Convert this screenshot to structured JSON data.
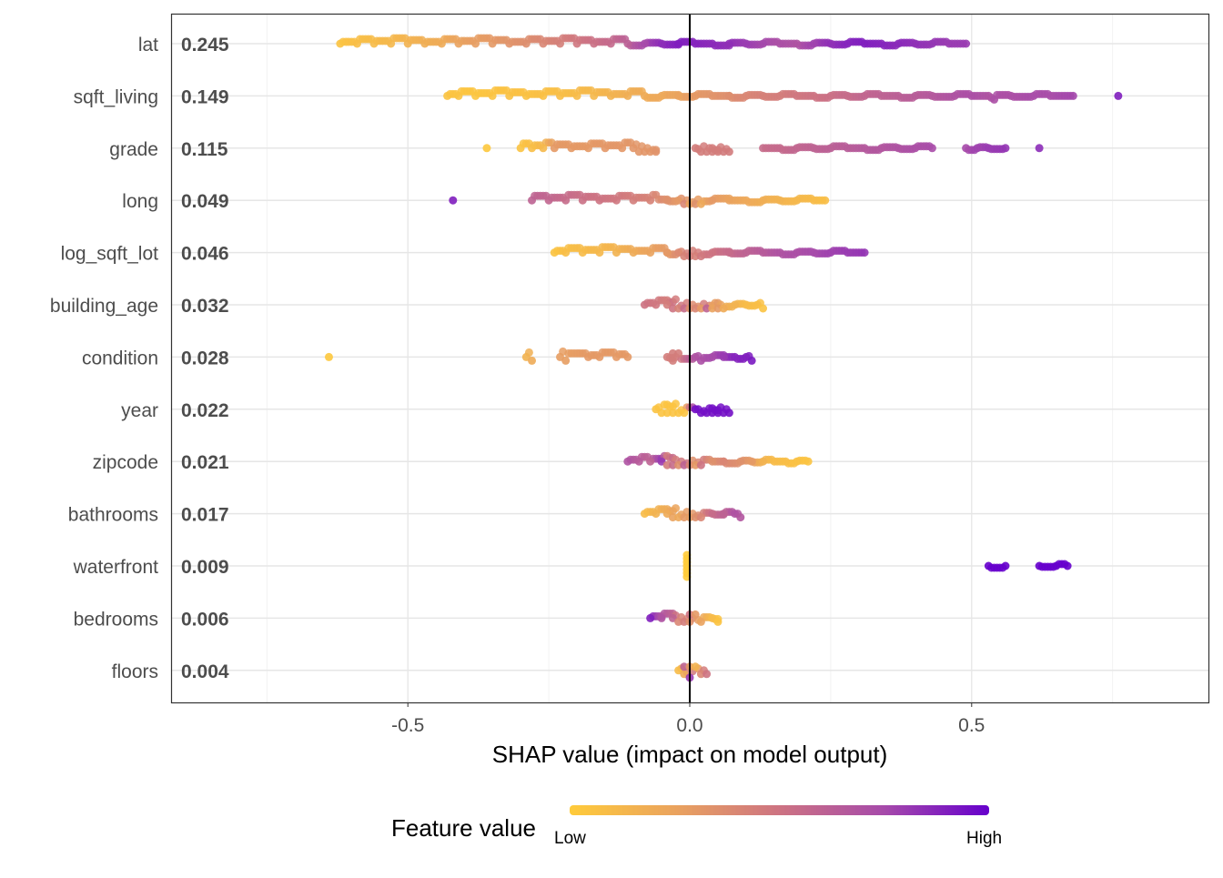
{
  "chart_data": {
    "type": "scatter",
    "subtype": "shap-beeswarm",
    "xlabel": "SHAP value (impact on model output)",
    "xlim": [
      -0.92,
      0.92
    ],
    "xticks": [
      -0.5,
      0.0,
      0.5
    ],
    "xtick_labels": [
      "-0.5",
      "0.0",
      "0.5"
    ],
    "grid": true,
    "legend": {
      "title": "Feature value",
      "low_label": "Low",
      "high_label": "High",
      "placement": "bottom",
      "colors": [
        "#ffcb3a",
        "#eaa35e",
        "#cd7382",
        "#a64aaa",
        "#6600cc"
      ]
    },
    "features": [
      {
        "name": "lat",
        "importance": "0.245",
        "points": [
          [
            -0.62,
            0.05
          ],
          [
            -0.59,
            0.08
          ],
          [
            -0.56,
            0.1
          ],
          [
            -0.53,
            0.12
          ],
          [
            -0.5,
            0.15
          ],
          [
            -0.47,
            0.18
          ],
          [
            -0.44,
            0.2
          ],
          [
            -0.41,
            0.25
          ],
          [
            -0.38,
            0.28
          ],
          [
            -0.35,
            0.3
          ],
          [
            -0.32,
            0.33
          ],
          [
            -0.29,
            0.36
          ],
          [
            -0.26,
            0.4
          ],
          [
            -0.23,
            0.44
          ],
          [
            -0.2,
            0.48
          ],
          [
            -0.17,
            0.52
          ],
          [
            -0.14,
            0.56
          ],
          [
            -0.11,
            0.62
          ],
          [
            -0.08,
            0.75
          ],
          [
            -0.05,
            0.85
          ],
          [
            -0.02,
            0.9
          ],
          [
            0.01,
            0.88
          ],
          [
            0.04,
            0.86
          ],
          [
            0.07,
            0.84
          ],
          [
            0.1,
            0.8
          ],
          [
            0.13,
            0.76
          ],
          [
            0.16,
            0.72
          ],
          [
            0.19,
            0.7
          ],
          [
            0.22,
            0.78
          ],
          [
            0.25,
            0.84
          ],
          [
            0.28,
            0.88
          ],
          [
            0.31,
            0.9
          ],
          [
            0.34,
            0.88
          ],
          [
            0.37,
            0.86
          ],
          [
            0.4,
            0.84
          ],
          [
            0.43,
            0.82
          ],
          [
            0.46,
            0.8
          ],
          [
            0.49,
            0.8
          ]
        ]
      },
      {
        "name": "sqft_living",
        "importance": "0.149",
        "points": [
          [
            -0.43,
            0.05
          ],
          [
            -0.41,
            0.05
          ],
          [
            -0.38,
            0.04
          ],
          [
            -0.35,
            0.05
          ],
          [
            -0.32,
            0.06
          ],
          [
            -0.29,
            0.06
          ],
          [
            -0.26,
            0.07
          ],
          [
            -0.23,
            0.08
          ],
          [
            -0.2,
            0.1
          ],
          [
            -0.17,
            0.12
          ],
          [
            -0.14,
            0.15
          ],
          [
            -0.11,
            0.18
          ],
          [
            -0.08,
            0.2
          ],
          [
            -0.05,
            0.22
          ],
          [
            -0.02,
            0.25
          ],
          [
            0.01,
            0.3
          ],
          [
            0.04,
            0.33
          ],
          [
            0.07,
            0.36
          ],
          [
            0.1,
            0.4
          ],
          [
            0.13,
            0.43
          ],
          [
            0.16,
            0.45
          ],
          [
            0.19,
            0.48
          ],
          [
            0.22,
            0.5
          ],
          [
            0.25,
            0.52
          ],
          [
            0.28,
            0.55
          ],
          [
            0.31,
            0.58
          ],
          [
            0.34,
            0.6
          ],
          [
            0.37,
            0.62
          ],
          [
            0.4,
            0.64
          ],
          [
            0.43,
            0.66
          ],
          [
            0.47,
            0.7
          ],
          [
            0.5,
            0.72
          ],
          [
            0.53,
            0.7
          ],
          [
            0.54,
            0.72
          ],
          [
            0.57,
            0.72
          ],
          [
            0.61,
            0.74
          ],
          [
            0.64,
            0.74
          ],
          [
            0.68,
            0.76
          ],
          [
            0.76,
            0.9
          ]
        ]
      },
      {
        "name": "grade",
        "importance": "0.115",
        "points": [
          [
            -0.36,
            0.02
          ],
          [
            -0.3,
            0.05
          ],
          [
            -0.28,
            0.08
          ],
          [
            -0.26,
            0.12
          ],
          [
            -0.24,
            0.3
          ],
          [
            -0.21,
            0.3
          ],
          [
            -0.18,
            0.3
          ],
          [
            -0.15,
            0.31
          ],
          [
            -0.12,
            0.31
          ],
          [
            -0.1,
            0.32
          ],
          [
            -0.09,
            0.32
          ],
          [
            -0.08,
            0.32
          ],
          [
            -0.07,
            0.32
          ],
          [
            -0.06,
            0.33
          ],
          [
            0.01,
            0.45
          ],
          [
            0.02,
            0.45
          ],
          [
            0.03,
            0.45
          ],
          [
            0.04,
            0.45
          ],
          [
            0.05,
            0.45
          ],
          [
            0.06,
            0.46
          ],
          [
            0.07,
            0.46
          ],
          [
            0.13,
            0.55
          ],
          [
            0.16,
            0.56
          ],
          [
            0.19,
            0.58
          ],
          [
            0.22,
            0.6
          ],
          [
            0.25,
            0.62
          ],
          [
            0.28,
            0.64
          ],
          [
            0.31,
            0.66
          ],
          [
            0.34,
            0.68
          ],
          [
            0.37,
            0.7
          ],
          [
            0.4,
            0.72
          ],
          [
            0.43,
            0.74
          ],
          [
            0.49,
            0.75
          ],
          [
            0.51,
            0.78
          ],
          [
            0.53,
            0.8
          ],
          [
            0.56,
            0.82
          ],
          [
            0.62,
            0.85
          ]
        ]
      },
      {
        "name": "long",
        "importance": "0.049",
        "points": [
          [
            -0.42,
            0.9
          ],
          [
            -0.28,
            0.6
          ],
          [
            -0.25,
            0.58
          ],
          [
            -0.22,
            0.55
          ],
          [
            -0.19,
            0.52
          ],
          [
            -0.16,
            0.5
          ],
          [
            -0.13,
            0.48
          ],
          [
            -0.1,
            0.45
          ],
          [
            -0.07,
            0.42
          ],
          [
            -0.04,
            0.35
          ],
          [
            -0.02,
            0.3
          ],
          [
            -0.01,
            0.4
          ],
          [
            0.0,
            0.25
          ],
          [
            0.01,
            0.35
          ],
          [
            0.02,
            0.22
          ],
          [
            0.04,
            0.3
          ],
          [
            0.07,
            0.25
          ],
          [
            0.1,
            0.22
          ],
          [
            0.13,
            0.18
          ],
          [
            0.16,
            0.15
          ],
          [
            0.19,
            0.12
          ],
          [
            0.22,
            0.1
          ],
          [
            0.24,
            0.08
          ]
        ]
      },
      {
        "name": "log_sqft_lot",
        "importance": "0.046",
        "points": [
          [
            -0.24,
            0.05
          ],
          [
            -0.22,
            0.08
          ],
          [
            -0.19,
            0.1
          ],
          [
            -0.16,
            0.12
          ],
          [
            -0.13,
            0.15
          ],
          [
            -0.1,
            0.2
          ],
          [
            -0.07,
            0.25
          ],
          [
            -0.04,
            0.3
          ],
          [
            -0.02,
            0.38
          ],
          [
            -0.01,
            0.42
          ],
          [
            0.0,
            0.45
          ],
          [
            0.01,
            0.43
          ],
          [
            0.02,
            0.47
          ],
          [
            0.04,
            0.5
          ],
          [
            0.07,
            0.55
          ],
          [
            0.1,
            0.6
          ],
          [
            0.13,
            0.65
          ],
          [
            0.16,
            0.7
          ],
          [
            0.19,
            0.72
          ],
          [
            0.22,
            0.75
          ],
          [
            0.25,
            0.78
          ],
          [
            0.28,
            0.8
          ],
          [
            0.31,
            0.82
          ]
        ]
      },
      {
        "name": "building_age",
        "importance": "0.032",
        "points": [
          [
            -0.08,
            0.5
          ],
          [
            -0.06,
            0.48
          ],
          [
            -0.04,
            0.45
          ],
          [
            -0.03,
            0.5
          ],
          [
            -0.02,
            0.42
          ],
          [
            -0.01,
            0.55
          ],
          [
            0.0,
            0.35
          ],
          [
            0.01,
            0.4
          ],
          [
            0.02,
            0.3
          ],
          [
            0.03,
            0.6
          ],
          [
            0.04,
            0.25
          ],
          [
            0.05,
            0.3
          ],
          [
            0.06,
            0.2
          ],
          [
            0.08,
            0.15
          ],
          [
            0.1,
            0.1
          ],
          [
            0.12,
            0.08
          ],
          [
            0.13,
            0.05
          ]
        ]
      },
      {
        "name": "condition",
        "importance": "0.028",
        "points": [
          [
            -0.64,
            0.02
          ],
          [
            -0.29,
            0.15
          ],
          [
            -0.28,
            0.2
          ],
          [
            -0.23,
            0.28
          ],
          [
            -0.22,
            0.28
          ],
          [
            -0.18,
            0.3
          ],
          [
            -0.16,
            0.3
          ],
          [
            -0.13,
            0.3
          ],
          [
            -0.11,
            0.3
          ],
          [
            -0.04,
            0.45
          ],
          [
            -0.03,
            0.45
          ],
          [
            -0.03,
            0.45
          ],
          [
            -0.02,
            0.45
          ],
          [
            0.01,
            0.7
          ],
          [
            0.02,
            0.72
          ],
          [
            0.04,
            0.75
          ],
          [
            0.06,
            0.8
          ],
          [
            0.08,
            0.88
          ],
          [
            0.1,
            0.9
          ],
          [
            0.11,
            0.92
          ]
        ]
      },
      {
        "name": "year",
        "importance": "0.022",
        "points": [
          [
            -0.06,
            0.05
          ],
          [
            -0.05,
            0.05
          ],
          [
            -0.04,
            0.05
          ],
          [
            -0.03,
            0.05
          ],
          [
            -0.02,
            0.05
          ],
          [
            -0.01,
            0.05
          ],
          [
            0.01,
            0.95
          ],
          [
            0.02,
            0.95
          ],
          [
            0.03,
            0.95
          ],
          [
            0.04,
            0.95
          ],
          [
            0.05,
            0.95
          ],
          [
            0.06,
            0.95
          ],
          [
            0.07,
            0.95
          ]
        ]
      },
      {
        "name": "zipcode",
        "importance": "0.021",
        "points": [
          [
            -0.11,
            0.7
          ],
          [
            -0.09,
            0.65
          ],
          [
            -0.07,
            0.6
          ],
          [
            -0.05,
            0.8
          ],
          [
            -0.04,
            0.45
          ],
          [
            -0.03,
            0.55
          ],
          [
            -0.02,
            0.35
          ],
          [
            -0.01,
            0.6
          ],
          [
            0.0,
            0.4
          ],
          [
            0.01,
            0.3
          ],
          [
            0.02,
            0.5
          ],
          [
            0.04,
            0.35
          ],
          [
            0.06,
            0.4
          ],
          [
            0.09,
            0.35
          ],
          [
            0.11,
            0.3
          ],
          [
            0.13,
            0.15
          ],
          [
            0.15,
            0.1
          ],
          [
            0.17,
            0.08
          ],
          [
            0.19,
            0.06
          ],
          [
            0.21,
            0.05
          ]
        ]
      },
      {
        "name": "bathrooms",
        "importance": "0.017",
        "points": [
          [
            -0.08,
            0.1
          ],
          [
            -0.06,
            0.15
          ],
          [
            -0.04,
            0.2
          ],
          [
            -0.03,
            0.25
          ],
          [
            -0.02,
            0.22
          ],
          [
            -0.01,
            0.3
          ],
          [
            0.0,
            0.28
          ],
          [
            0.01,
            0.35
          ],
          [
            0.02,
            0.4
          ],
          [
            0.04,
            0.55
          ],
          [
            0.06,
            0.6
          ],
          [
            0.08,
            0.7
          ],
          [
            0.09,
            0.68
          ]
        ]
      },
      {
        "name": "waterfront",
        "importance": "0.009",
        "points": [
          [
            -0.005,
            0.0
          ],
          [
            -0.005,
            0.0
          ],
          [
            -0.005,
            0.0
          ],
          [
            -0.005,
            0.0
          ],
          [
            -0.005,
            0.0
          ],
          [
            -0.005,
            0.0
          ],
          [
            -0.005,
            0.0
          ],
          [
            0.53,
            1.0
          ],
          [
            0.56,
            1.0
          ],
          [
            0.62,
            1.0
          ],
          [
            0.65,
            1.0
          ],
          [
            0.67,
            1.0
          ]
        ]
      },
      {
        "name": "bedrooms",
        "importance": "0.006",
        "points": [
          [
            -0.07,
            0.9
          ],
          [
            -0.05,
            0.7
          ],
          [
            -0.03,
            0.6
          ],
          [
            -0.02,
            0.4
          ],
          [
            -0.01,
            0.45
          ],
          [
            0.0,
            0.35
          ],
          [
            0.0,
            0.5
          ],
          [
            0.01,
            0.3
          ],
          [
            0.02,
            0.25
          ],
          [
            0.04,
            0.1
          ],
          [
            0.05,
            0.05
          ]
        ]
      },
      {
        "name": "floors",
        "importance": "0.004",
        "points": [
          [
            -0.02,
            0.1
          ],
          [
            -0.01,
            0.2
          ],
          [
            -0.01,
            0.6
          ],
          [
            0.0,
            0.3
          ],
          [
            0.0,
            0.8
          ],
          [
            0.01,
            0.15
          ],
          [
            0.02,
            0.4
          ],
          [
            0.03,
            0.5
          ]
        ]
      }
    ]
  }
}
